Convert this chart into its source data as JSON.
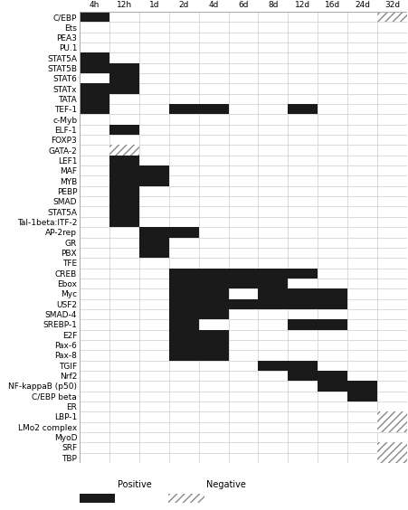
{
  "col_labels": [
    "4h",
    "12h",
    "1d",
    "2d",
    "4d",
    "6d",
    "8d",
    "12d",
    "16d",
    "24d",
    "32d"
  ],
  "row_labels": [
    "C/EBP",
    "Ets",
    "PEA3",
    "PU.1",
    "STAT5A",
    "STAT5B",
    "STAT6",
    "STATx",
    "TATA",
    "TEF-1",
    "c-Myb",
    "ELF-1",
    "FOXP3",
    "GATA-2",
    "LEF1",
    "MAF",
    "MYB",
    "PEBP",
    "SMAD",
    "STAT5A",
    "Tal-1beta:ITF-2",
    "AP-2rep",
    "GR",
    "PBX",
    "TFE",
    "CREB",
    "Ebox",
    "Myc",
    "USF2",
    "SMAD-4",
    "SREBP-1",
    "E2F",
    "Pax-6",
    "Pax-8",
    "TGIF",
    "Nrf2",
    "NF-kappaB (p50)",
    "C/EBP beta",
    "ER",
    "LBP-1",
    "LMo2 complex",
    "MyoD",
    "SRF",
    "TBP"
  ],
  "cell_color_positive": "#1a1a1a",
  "cell_color_negative_hatch": "#888888",
  "grid_color": "#cccccc",
  "background_color": "#ffffff",
  "hatch_pattern": "////",
  "cell_fills": [
    [
      0,
      0,
      0,
      "pos"
    ],
    [
      0,
      10,
      10,
      "neg"
    ],
    [
      4,
      0,
      0,
      "pos"
    ],
    [
      5,
      0,
      1,
      "pos"
    ],
    [
      6,
      1,
      1,
      "pos"
    ],
    [
      7,
      0,
      1,
      "pos"
    ],
    [
      8,
      0,
      0,
      "pos"
    ],
    [
      9,
      0,
      0,
      "pos"
    ],
    [
      9,
      3,
      4,
      "pos"
    ],
    [
      9,
      7,
      7,
      "pos"
    ],
    [
      11,
      1,
      1,
      "pos"
    ],
    [
      13,
      1,
      1,
      "neg"
    ],
    [
      14,
      1,
      1,
      "pos"
    ],
    [
      15,
      1,
      2,
      "pos"
    ],
    [
      16,
      1,
      2,
      "pos"
    ],
    [
      17,
      1,
      1,
      "pos"
    ],
    [
      18,
      1,
      1,
      "pos"
    ],
    [
      19,
      1,
      1,
      "pos"
    ],
    [
      20,
      1,
      1,
      "pos"
    ],
    [
      21,
      2,
      3,
      "pos"
    ],
    [
      22,
      2,
      2,
      "pos"
    ],
    [
      23,
      2,
      2,
      "pos"
    ],
    [
      25,
      3,
      7,
      "pos"
    ],
    [
      26,
      3,
      6,
      "pos"
    ],
    [
      27,
      3,
      4,
      "pos"
    ],
    [
      27,
      6,
      8,
      "pos"
    ],
    [
      28,
      3,
      8,
      "pos"
    ],
    [
      29,
      3,
      4,
      "pos"
    ],
    [
      30,
      3,
      3,
      "pos"
    ],
    [
      30,
      7,
      8,
      "pos"
    ],
    [
      31,
      3,
      4,
      "pos"
    ],
    [
      32,
      3,
      4,
      "pos"
    ],
    [
      33,
      3,
      4,
      "pos"
    ],
    [
      34,
      6,
      7,
      "pos"
    ],
    [
      35,
      7,
      8,
      "pos"
    ],
    [
      36,
      8,
      9,
      "pos"
    ],
    [
      37,
      9,
      9,
      "pos"
    ],
    [
      39,
      10,
      10,
      "neg"
    ],
    [
      40,
      10,
      10,
      "neg"
    ],
    [
      42,
      10,
      10,
      "neg"
    ],
    [
      43,
      10,
      10,
      "neg"
    ]
  ],
  "legend_pos_label": "Positive",
  "legend_neg_label": "Negative",
  "row_label_fontsize": 6.5,
  "col_label_fontsize": 6.5
}
